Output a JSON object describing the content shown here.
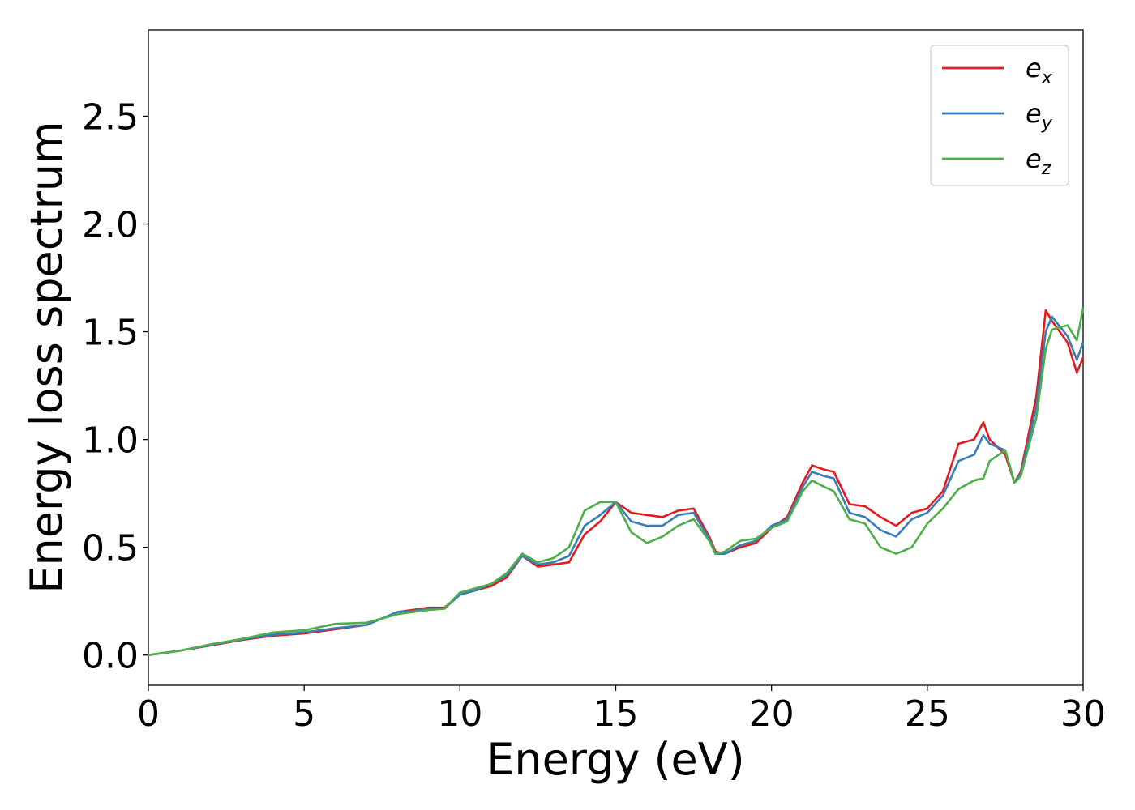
{
  "chart_data": {
    "type": "line",
    "xlabel": "Energy (eV)",
    "ylabel": "Energy loss spectrum",
    "xlim": [
      0,
      30
    ],
    "ylim": [
      -0.14,
      2.9
    ],
    "xticks": [
      "0",
      "5",
      "10",
      "15",
      "20",
      "25",
      "30"
    ],
    "yticks": [
      "0.0",
      "0.5",
      "1.0",
      "1.5",
      "2.0",
      "2.5"
    ],
    "grid": false,
    "legend_position": "top-right",
    "series": [
      {
        "name": "e",
        "subscript": "x",
        "color": "#e41a1c",
        "x": [
          0,
          1,
          2,
          3,
          4,
          5,
          6,
          7,
          8,
          8.5,
          9,
          9.5,
          10,
          10.5,
          11,
          11.5,
          12,
          12.5,
          13,
          13.5,
          14,
          14.5,
          15,
          15.5,
          16,
          16.5,
          17,
          17.5,
          18,
          18.2,
          18.5,
          19,
          19.5,
          20,
          20.5,
          21,
          21.3,
          21.7,
          22,
          22.5,
          23,
          23.5,
          24,
          24.5,
          25,
          25.5,
          26,
          26.5,
          26.8,
          27,
          27.5,
          27.8,
          28,
          28.5,
          28.8,
          29,
          29.5,
          29.8,
          30
        ],
        "values": [
          0,
          0.02,
          0.045,
          0.07,
          0.09,
          0.1,
          0.12,
          0.14,
          0.2,
          0.21,
          0.22,
          0.22,
          0.28,
          0.3,
          0.32,
          0.36,
          0.46,
          0.41,
          0.42,
          0.43,
          0.56,
          0.62,
          0.71,
          0.66,
          0.65,
          0.64,
          0.67,
          0.68,
          0.55,
          0.48,
          0.47,
          0.5,
          0.52,
          0.59,
          0.64,
          0.8,
          0.88,
          0.86,
          0.85,
          0.7,
          0.69,
          0.64,
          0.6,
          0.66,
          0.68,
          0.76,
          0.98,
          1.0,
          1.08,
          1.0,
          0.93,
          0.8,
          0.85,
          1.2,
          1.6,
          1.55,
          1.45,
          1.31,
          1.38
        ]
      },
      {
        "name": "e",
        "subscript": "y",
        "color": "#377eb8",
        "x": [
          0,
          1,
          2,
          3,
          4,
          5,
          6,
          7,
          8,
          8.5,
          9,
          9.5,
          10,
          10.5,
          11,
          11.5,
          12,
          12.5,
          13,
          13.5,
          14,
          14.5,
          15,
          15.5,
          16,
          16.5,
          17,
          17.5,
          18,
          18.2,
          18.5,
          19,
          19.5,
          20,
          20.5,
          21,
          21.3,
          21.7,
          22,
          22.5,
          23,
          23.5,
          24,
          24.5,
          25,
          25.5,
          26,
          26.5,
          26.8,
          27,
          27.5,
          27.8,
          28,
          28.5,
          28.8,
          29,
          29.5,
          29.8,
          30
        ],
        "values": [
          0,
          0.02,
          0.047,
          0.072,
          0.095,
          0.105,
          0.125,
          0.14,
          0.2,
          0.205,
          0.215,
          0.215,
          0.28,
          0.3,
          0.33,
          0.37,
          0.46,
          0.42,
          0.43,
          0.46,
          0.6,
          0.65,
          0.71,
          0.62,
          0.6,
          0.6,
          0.65,
          0.66,
          0.54,
          0.47,
          0.47,
          0.51,
          0.53,
          0.6,
          0.63,
          0.78,
          0.85,
          0.83,
          0.82,
          0.66,
          0.64,
          0.58,
          0.55,
          0.63,
          0.66,
          0.74,
          0.9,
          0.93,
          1.02,
          0.98,
          0.95,
          0.8,
          0.84,
          1.15,
          1.5,
          1.57,
          1.48,
          1.37,
          1.45
        ]
      },
      {
        "name": "e",
        "subscript": "z",
        "color": "#4daf4a",
        "x": [
          0,
          1,
          2,
          3,
          4,
          5,
          6,
          7,
          8,
          8.5,
          9,
          9.5,
          10,
          10.5,
          11,
          11.5,
          12,
          12.5,
          13,
          13.5,
          14,
          14.5,
          15,
          15.5,
          16,
          16.5,
          17,
          17.5,
          18,
          18.2,
          18.5,
          19,
          19.5,
          20,
          20.5,
          21,
          21.3,
          21.7,
          22,
          22.5,
          23,
          23.5,
          24,
          24.5,
          25,
          25.5,
          26,
          26.5,
          26.8,
          27,
          27.5,
          27.8,
          28,
          28.5,
          28.8,
          29,
          29.5,
          29.8,
          30
        ],
        "values": [
          0,
          0.02,
          0.05,
          0.075,
          0.105,
          0.115,
          0.145,
          0.15,
          0.19,
          0.2,
          0.21,
          0.215,
          0.29,
          0.31,
          0.33,
          0.38,
          0.47,
          0.43,
          0.45,
          0.5,
          0.67,
          0.71,
          0.71,
          0.57,
          0.52,
          0.55,
          0.6,
          0.63,
          0.53,
          0.47,
          0.48,
          0.53,
          0.54,
          0.59,
          0.62,
          0.76,
          0.81,
          0.78,
          0.76,
          0.63,
          0.61,
          0.5,
          0.47,
          0.5,
          0.61,
          0.68,
          0.77,
          0.81,
          0.82,
          0.9,
          0.95,
          0.8,
          0.83,
          1.1,
          1.42,
          1.51,
          1.53,
          1.46,
          1.61
        ]
      }
    ]
  }
}
